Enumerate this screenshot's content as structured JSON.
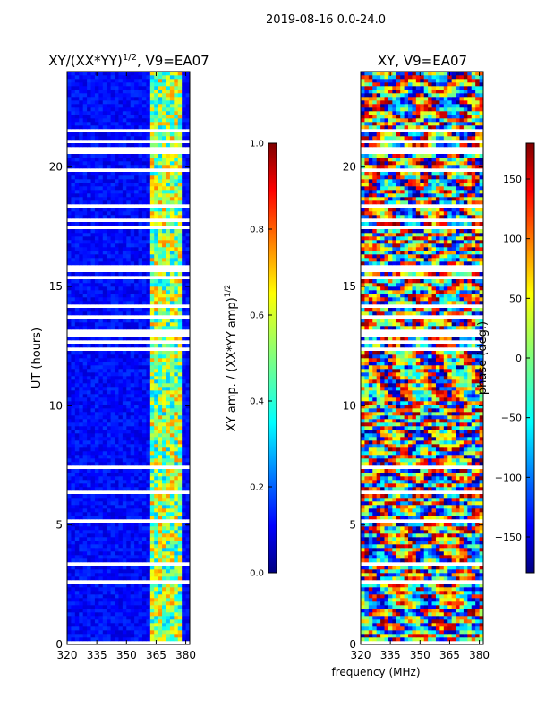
{
  "figure": {
    "suptitle": "2019-08-16 0.0-24.0",
    "shared_xlabel": "frequency (MHz)"
  },
  "chart_data": [
    {
      "type": "heatmap",
      "title_main": "XY/(XX*YY)",
      "title_exp": "1/2",
      "title_tail": ", V9=EA07",
      "xlabel": "",
      "ylabel": "UT (hours)",
      "xlim": [
        320,
        382
      ],
      "ylim": [
        0,
        24
      ],
      "xticks": [
        320,
        335,
        350,
        365,
        380
      ],
      "yticks": [
        0,
        5,
        10,
        15,
        20
      ],
      "rfi_band_mhz": [
        361,
        378
      ],
      "colorbar": {
        "label_main": "XY amp. / (XX*YY amp)",
        "label_exp": "1/2",
        "range": [
          0.0,
          1.0
        ],
        "ticks": [
          "0.0",
          "0.2",
          "0.4",
          "0.6",
          "0.8",
          "1.0"
        ]
      }
    },
    {
      "type": "heatmap",
      "title": "XY, V9=EA07",
      "xlabel": "frequency (MHz)",
      "ylabel": "",
      "xlim": [
        320,
        382
      ],
      "ylim": [
        0,
        24
      ],
      "xticks": [
        320,
        335,
        350,
        365,
        380
      ],
      "yticks": [
        0,
        5,
        10,
        15,
        20
      ],
      "colorbar": {
        "label": "phase (deg.)",
        "range": [
          -180,
          180
        ],
        "ticks": [
          "150",
          "100",
          "50",
          "0",
          "−50",
          "−100",
          "−150"
        ],
        "tick_values": [
          150,
          100,
          50,
          0,
          -50,
          -100,
          -150
        ]
      }
    }
  ],
  "colors": {
    "cmap": [
      "#00007f",
      "#0000ff",
      "#007fff",
      "#00ffff",
      "#7fff7f",
      "#ffff00",
      "#ff7f00",
      "#ff0000",
      "#7f0000"
    ],
    "gap": "#ffffff"
  }
}
